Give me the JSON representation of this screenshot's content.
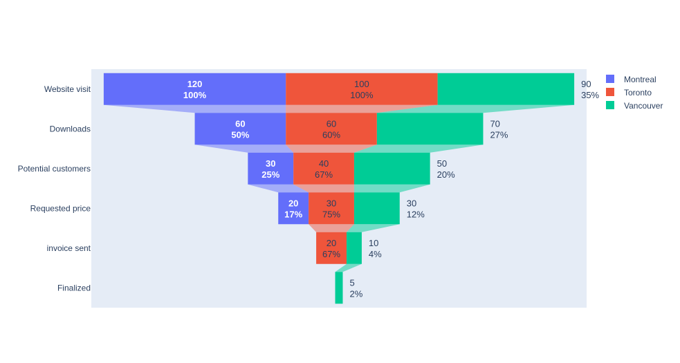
{
  "chart_data": {
    "type": "funnel",
    "categories": [
      "Website visit",
      "Downloads",
      "Potential customers",
      "Requested price",
      "invoice sent",
      "Finalized"
    ],
    "series": [
      {
        "name": "Montreal",
        "color": "#636efa",
        "values": [
          120,
          60,
          30,
          20,
          null,
          null
        ],
        "percent_labels": [
          "100%",
          "50%",
          "25%",
          "17%",
          null,
          null
        ],
        "label_position": "inside",
        "label_color": "#ffffff",
        "label_bold": true
      },
      {
        "name": "Toronto",
        "color": "#ef553b",
        "values": [
          100,
          60,
          40,
          30,
          20,
          null
        ],
        "percent_labels": [
          "100%",
          "60%",
          "67%",
          "75%",
          "67%",
          null
        ],
        "label_position": "inside",
        "label_color": "#2a3f5f",
        "label_bold": false
      },
      {
        "name": "Vancouver",
        "color": "#00cc96",
        "values": [
          90,
          70,
          50,
          30,
          10,
          5
        ],
        "percent_labels": [
          "35%",
          "27%",
          "20%",
          "12%",
          "4%",
          "2%"
        ],
        "label_position": "outside",
        "label_color": "#2a3f5f",
        "label_bold": false
      }
    ],
    "legend": {
      "position": "top-right"
    },
    "plot_background": "#e5ecf6",
    "connector_opacity": 0.5
  }
}
